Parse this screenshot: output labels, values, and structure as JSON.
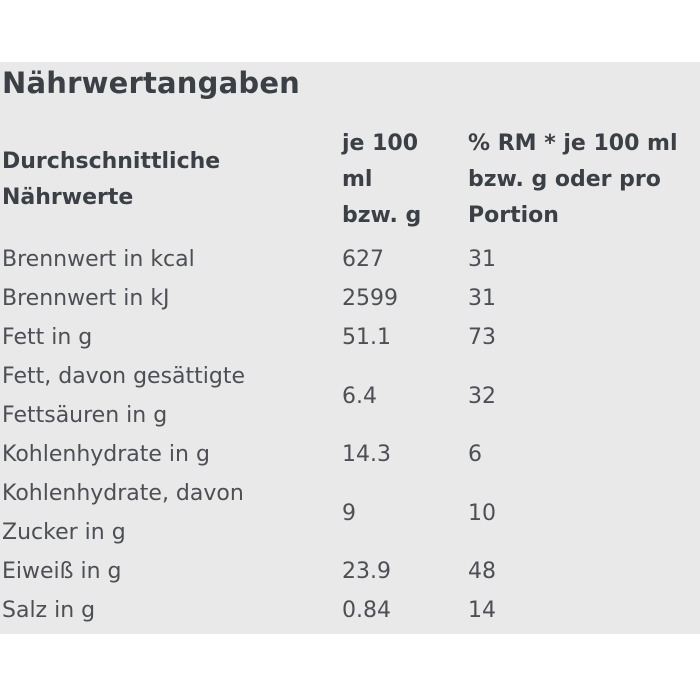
{
  "section": {
    "title": "Nährwertangaben"
  },
  "table": {
    "header": {
      "nutrients": "Durchschnittliche Nährwerte",
      "per_100": "je 100 ml bzw. g",
      "rm_percent": "% RM * je 100 ml bzw. g oder pro Portion"
    },
    "rows": [
      {
        "label": "Brennwert in kcal",
        "per100": "627",
        "rm": "31"
      },
      {
        "label": "Brennwert in kJ",
        "per100": "2599",
        "rm": "31"
      },
      {
        "label": "Fett in g",
        "per100": "51.1",
        "rm": "73"
      },
      {
        "label": "Fett, davon gesättigte Fettsäuren in g",
        "per100": "6.4",
        "rm": "32"
      },
      {
        "label": "Kohlenhydrate in g",
        "per100": "14.3",
        "rm": "6"
      },
      {
        "label": "Kohlenhydrate, davon Zucker in g",
        "per100": "9",
        "rm": "10"
      },
      {
        "label": "Eiweiß in g",
        "per100": "23.9",
        "rm": "48"
      },
      {
        "label": "Salz in g",
        "per100": "0.84",
        "rm": "14"
      }
    ]
  },
  "colors": {
    "page_bg": "#ffffff",
    "panel_bg": "#e9e9e9",
    "text_strong": "#3b4046",
    "text_body": "#4c5056"
  }
}
